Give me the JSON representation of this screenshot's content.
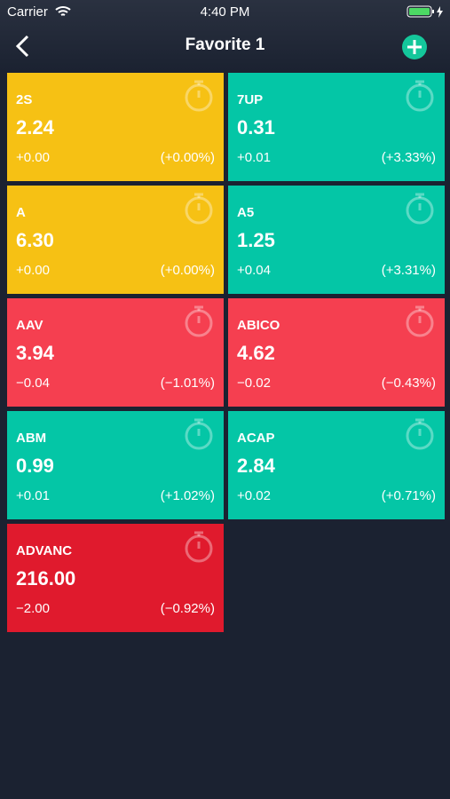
{
  "status_bar": {
    "carrier": "Carrier",
    "time": "4:40 PM"
  },
  "header": {
    "title": "Favorite 1"
  },
  "tiles": [
    {
      "symbol": "2S",
      "price": "2.24",
      "change": "+0.00",
      "percent": "(+0.00%)",
      "color": "#f6c114"
    },
    {
      "symbol": "7UP",
      "price": "0.31",
      "change": "+0.01",
      "percent": "(+3.33%)",
      "color": "#04c6a6"
    },
    {
      "symbol": "A",
      "price": "6.30",
      "change": "+0.00",
      "percent": "(+0.00%)",
      "color": "#f6c114"
    },
    {
      "symbol": "A5",
      "price": "1.25",
      "change": "+0.04",
      "percent": "(+3.31%)",
      "color": "#04c6a6"
    },
    {
      "symbol": "AAV",
      "price": "3.94",
      "change": "−0.04",
      "percent": "(−1.01%)",
      "color": "#f53f50"
    },
    {
      "symbol": "ABICO",
      "price": "4.62",
      "change": "−0.02",
      "percent": "(−0.43%)",
      "color": "#f53f50"
    },
    {
      "symbol": "ABM",
      "price": "0.99",
      "change": "+0.01",
      "percent": "(+1.02%)",
      "color": "#04c6a6"
    },
    {
      "symbol": "ACAP",
      "price": "2.84",
      "change": "+0.02",
      "percent": "(+0.71%)",
      "color": "#04c6a6"
    },
    {
      "symbol": "ADVANC",
      "price": "216.00",
      "change": "−2.00",
      "percent": "(−0.92%)",
      "color": "#e01a2d"
    }
  ]
}
